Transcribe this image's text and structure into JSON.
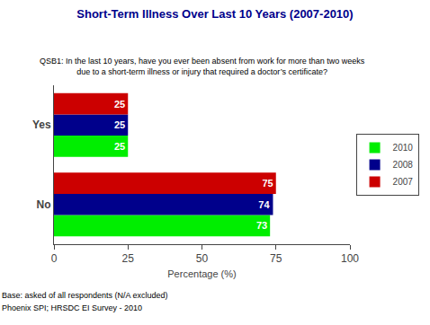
{
  "chart_data": {
    "type": "bar",
    "orientation": "horizontal",
    "title": "Short-Term Illness Over Last 10 Years (2007-2010)",
    "subtitle": [
      "QSB1: In the last 10 years, have you ever been absent from work for more than two weeks",
      "due to a short-term illness or injury that required a doctor’s certificate?"
    ],
    "x_label": "Percentage (%)",
    "categories": [
      "No",
      "Yes"
    ],
    "series": [
      {
        "name": "2010",
        "color": "#00EE00",
        "values": [
          73,
          25
        ]
      },
      {
        "name": "2008",
        "color": "#00008B",
        "values": [
          74,
          25
        ]
      },
      {
        "name": "2007",
        "color": "#CC0000",
        "values": [
          75,
          25
        ]
      }
    ],
    "xlim": [
      0,
      100
    ],
    "xticks": [
      0,
      25,
      50,
      75,
      100
    ],
    "grid": false,
    "legend": "right",
    "data_labels": true,
    "annotations": [
      "Base: asked of all respondents (N/A excluded)",
      "Phoenix SPI; HRSDC EI Survey - 2010"
    ]
  }
}
